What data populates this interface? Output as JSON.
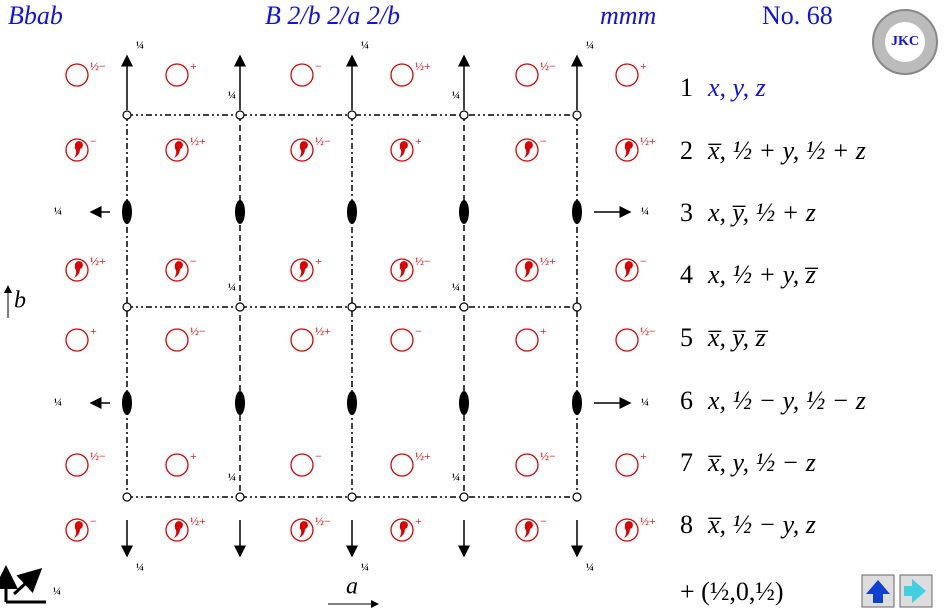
{
  "header": {
    "short_symbol": "Bbab",
    "full_symbol": "B 2/b 2/a 2/b",
    "point_group": "mmm",
    "number": "No. 68",
    "logo": "JKC"
  },
  "diagram": {
    "quarter": "¼",
    "axis_a": "a",
    "axis_b": "b",
    "atoms": [
      [
        {
          "sign": "½−",
          "comma": false
        },
        {
          "sign": "+",
          "comma": false
        },
        {
          "sign": "−",
          "comma": false
        },
        {
          "sign": "½+",
          "comma": false
        },
        {
          "sign": "½−",
          "comma": false
        },
        {
          "sign": "+",
          "comma": false
        }
      ],
      [
        {
          "sign": "−",
          "comma": true
        },
        {
          "sign": "½+",
          "comma": true
        },
        {
          "sign": "½−",
          "comma": true
        },
        {
          "sign": "+",
          "comma": true
        },
        {
          "sign": "−",
          "comma": true
        },
        {
          "sign": "½+",
          "comma": true
        }
      ],
      [
        {
          "sign": "½+",
          "comma": true
        },
        {
          "sign": "−",
          "comma": true
        },
        {
          "sign": "+",
          "comma": true
        },
        {
          "sign": "½−",
          "comma": true
        },
        {
          "sign": "½+",
          "comma": true
        },
        {
          "sign": "−",
          "comma": true
        }
      ],
      [
        {
          "sign": "+",
          "comma": false
        },
        {
          "sign": "½−",
          "comma": false
        },
        {
          "sign": "½+",
          "comma": false
        },
        {
          "sign": "−",
          "comma": false
        },
        {
          "sign": "+",
          "comma": false
        },
        {
          "sign": "½−",
          "comma": false
        }
      ],
      [
        {
          "sign": "½−",
          "comma": false
        },
        {
          "sign": "+",
          "comma": false
        },
        {
          "sign": "−",
          "comma": false
        },
        {
          "sign": "½+",
          "comma": false
        },
        {
          "sign": "½−",
          "comma": false
        },
        {
          "sign": "+",
          "comma": false
        }
      ],
      [
        {
          "sign": "−",
          "comma": true
        },
        {
          "sign": "½+",
          "comma": true
        },
        {
          "sign": "½−",
          "comma": true
        },
        {
          "sign": "+",
          "comma": true
        },
        {
          "sign": "−",
          "comma": true
        },
        {
          "sign": "½+",
          "comma": true
        }
      ]
    ]
  },
  "positions": [
    {
      "n": 1,
      "coords": "x, y, z"
    },
    {
      "n": 2,
      "coords": "x̅, ½ + y, ½ + z"
    },
    {
      "n": 3,
      "coords": "x, y̅, ½ + z"
    },
    {
      "n": 4,
      "coords": "x, ½ + y, z̅"
    },
    {
      "n": 5,
      "coords": "x̅, y̅, z̅"
    },
    {
      "n": 6,
      "coords": "x, ½ − y, ½ − z"
    },
    {
      "n": 7,
      "coords": "x̅, y, ½ − z"
    },
    {
      "n": 8,
      "coords": "x̅, ½ − y, z"
    }
  ],
  "centering": "+ (½,0,½)"
}
